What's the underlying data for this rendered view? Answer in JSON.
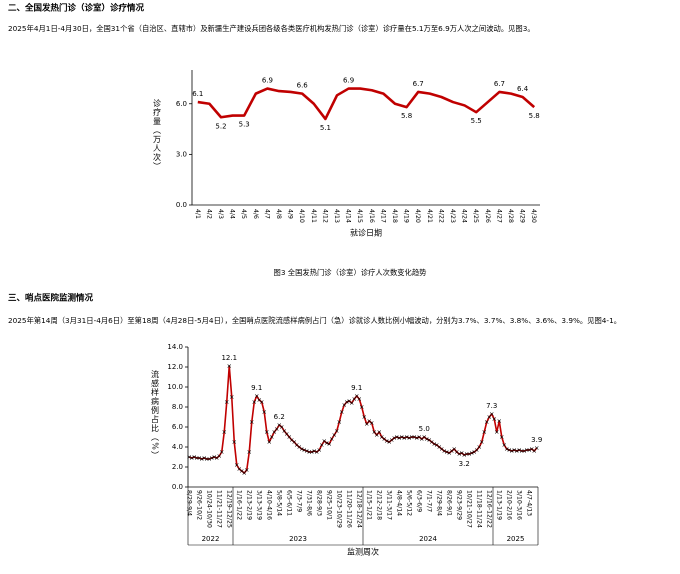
{
  "section1": {
    "heading": "二、全国发热门诊（诊室）诊疗情况",
    "paragraph": "2025年4月1日-4月30日，全国31个省（自治区、直辖市）及新疆生产建设兵团各级各类医疗机构发热门诊（诊室）诊疗量在5.1万至6.9万人次之间波动。见图3。"
  },
  "figure_caption": "图3 全国发热门诊（诊室）诊疗人次数变化趋势",
  "section2": {
    "heading": "三、哨点医院监测情况",
    "paragraph": "2025年第14周（3月31日-4月6日）至第18周（4月28日-5月4日），全国哨点医院流感样病例占门（急）诊就诊人数比例小幅波动，分别为3.7%、3.7%、3.8%、3.6%、3.9%。见图4-1。"
  },
  "chart_data": [
    {
      "type": "line",
      "y_label": "诊疗量（万人次）",
      "x_label": "就诊日期",
      "color": "#c00000",
      "categories": [
        "4/1",
        "4/2",
        "4/3",
        "4/4",
        "4/5",
        "4/6",
        "4/7",
        "4/8",
        "4/9",
        "4/10",
        "4/11",
        "4/12",
        "4/13",
        "4/14",
        "4/15",
        "4/16",
        "4/17",
        "4/18",
        "4/19",
        "4/20",
        "4/21",
        "4/22",
        "4/23",
        "4/24",
        "4/25",
        "4/26",
        "4/27",
        "4/28",
        "4/29",
        "4/30"
      ],
      "values": [
        6.1,
        6.0,
        5.2,
        5.3,
        5.3,
        6.6,
        6.9,
        6.75,
        6.7,
        6.6,
        6.0,
        5.1,
        6.5,
        6.9,
        6.9,
        6.8,
        6.6,
        6.0,
        5.8,
        6.7,
        6.6,
        6.4,
        6.1,
        5.9,
        5.5,
        6.1,
        6.7,
        6.6,
        6.4,
        5.8
      ],
      "value_labels": [
        "6.1",
        null,
        "5.2",
        null,
        "5.3",
        null,
        "6.9",
        null,
        null,
        "6.6",
        null,
        "5.1",
        null,
        "6.9",
        null,
        null,
        null,
        null,
        "5.8",
        "6.7",
        null,
        null,
        null,
        null,
        "5.5",
        null,
        "6.7",
        null,
        "6.4",
        "5.8"
      ],
      "ylim": [
        0,
        8
      ],
      "yticks": [
        {
          "value": 0,
          "label": "0.0"
        },
        {
          "value": 3,
          "label": "3.0"
        },
        {
          "value": 6,
          "label": "6.0"
        }
      ]
    },
    {
      "type": "line",
      "y_label": "流感样病例占比（%）",
      "x_label": "监测周次",
      "color": "#c00000",
      "marker": "x",
      "marker_color": "#000000",
      "categories": [
        "8/29-9/4",
        null,
        null,
        null,
        "9/26-10/2",
        null,
        null,
        null,
        "10/24-10/30",
        null,
        null,
        null,
        "11/21-11/27",
        null,
        null,
        null,
        "12/19-12/25",
        null,
        null,
        null,
        "1/16-1/22",
        null,
        null,
        null,
        "2/13-2/19",
        null,
        null,
        null,
        "3/13-3/19",
        null,
        null,
        null,
        "4/10-4/16",
        null,
        null,
        null,
        "5/8-5/14",
        null,
        null,
        null,
        "6/5-6/11",
        null,
        null,
        null,
        "7/3-7/9",
        null,
        null,
        null,
        "7/31-8/6",
        null,
        null,
        null,
        "8/28-9/3",
        null,
        null,
        null,
        "9/25-10/1",
        null,
        null,
        null,
        "10/23-10/29",
        null,
        null,
        null,
        "11/20-11/26",
        null,
        null,
        null,
        "12/18-12/24",
        null,
        null,
        null,
        "1/15-1/21",
        null,
        null,
        null,
        "2/12-2/18",
        null,
        null,
        null,
        "3/11-3/17",
        null,
        null,
        null,
        "4/8-4/14",
        null,
        null,
        null,
        "5/6-5/12",
        null,
        null,
        null,
        "6/3-6/9",
        null,
        null,
        null,
        "7/1-7/7",
        null,
        null,
        null,
        "7/29-8/4",
        null,
        null,
        null,
        "8/26-9/1",
        null,
        null,
        null,
        "9/23-9/29",
        null,
        null,
        null,
        "10/21-10/27",
        null,
        null,
        null,
        "11/18-11/24",
        null,
        null,
        null,
        "12/16-12/22",
        null,
        null,
        null,
        "1/13-1/19",
        null,
        null,
        null,
        "2/10-2/16",
        null,
        null,
        null,
        "3/10-3/16",
        null,
        null,
        null,
        "4/7-4/13",
        null,
        null,
        null
      ],
      "values": [
        3.0,
        2.9,
        3.0,
        2.9,
        2.9,
        2.8,
        2.9,
        2.8,
        2.8,
        2.9,
        3.0,
        2.9,
        3.1,
        3.5,
        5.5,
        8.5,
        12.1,
        9.0,
        4.5,
        2.2,
        1.8,
        1.6,
        1.4,
        1.7,
        3.5,
        6.5,
        8.5,
        9.1,
        8.7,
        8.5,
        7.5,
        5.5,
        4.5,
        5.0,
        5.5,
        5.8,
        6.2,
        6.0,
        5.6,
        5.3,
        5.0,
        4.7,
        4.5,
        4.2,
        4.0,
        3.8,
        3.7,
        3.6,
        3.5,
        3.5,
        3.6,
        3.5,
        3.7,
        4.2,
        4.6,
        4.4,
        4.3,
        4.8,
        5.2,
        5.6,
        6.5,
        7.5,
        8.2,
        8.5,
        8.6,
        8.4,
        8.8,
        9.1,
        8.8,
        8.0,
        7.0,
        6.3,
        6.6,
        6.4,
        5.5,
        5.2,
        5.5,
        5.0,
        4.8,
        4.6,
        4.5,
        4.7,
        4.9,
        5.0,
        4.9,
        5.0,
        4.9,
        5.0,
        4.9,
        5.0,
        5.0,
        4.9,
        5.0,
        4.8,
        5.0,
        4.8,
        4.7,
        4.5,
        4.3,
        4.2,
        4.0,
        3.8,
        3.6,
        3.5,
        3.4,
        3.6,
        3.8,
        3.5,
        3.3,
        3.4,
        3.2,
        3.3,
        3.3,
        3.4,
        3.5,
        3.7,
        4.0,
        4.5,
        5.5,
        6.5,
        7.0,
        7.3,
        6.8,
        5.5,
        6.6,
        5.0,
        4.2,
        3.8,
        3.7,
        3.6,
        3.7,
        3.6,
        3.7,
        3.6,
        3.6,
        3.7,
        3.7,
        3.8,
        3.6,
        3.9
      ],
      "value_labels": [
        null,
        null,
        null,
        null,
        null,
        null,
        null,
        null,
        null,
        null,
        null,
        null,
        null,
        null,
        null,
        null,
        "12.1",
        null,
        null,
        null,
        null,
        null,
        null,
        null,
        null,
        null,
        null,
        "9.1",
        null,
        null,
        null,
        null,
        null,
        null,
        null,
        null,
        "6.2",
        null,
        null,
        null,
        null,
        null,
        null,
        null,
        null,
        null,
        null,
        null,
        null,
        null,
        null,
        null,
        null,
        null,
        null,
        null,
        null,
        null,
        null,
        null,
        null,
        null,
        null,
        null,
        null,
        null,
        null,
        "9.1",
        null,
        null,
        null,
        null,
        null,
        null,
        null,
        null,
        null,
        null,
        null,
        null,
        null,
        null,
        null,
        null,
        null,
        null,
        null,
        null,
        null,
        null,
        null,
        null,
        null,
        null,
        "5.0",
        null,
        null,
        null,
        null,
        null,
        null,
        null,
        null,
        null,
        null,
        null,
        null,
        null,
        null,
        null,
        "3.2",
        null,
        null,
        null,
        null,
        null,
        null,
        null,
        null,
        null,
        null,
        "7.3",
        null,
        null,
        null,
        null,
        null,
        null,
        null,
        null,
        null,
        null,
        null,
        null,
        null,
        null,
        null,
        null,
        null,
        "3.9"
      ],
      "year_groups": [
        {
          "label": "2022",
          "count": 18
        },
        {
          "label": "2023",
          "count": 52
        },
        {
          "label": "2024",
          "count": 52
        },
        {
          "label": "2025",
          "count": 18
        }
      ],
      "ylim": [
        0,
        14
      ],
      "yticks": [
        {
          "value": 0,
          "label": "0.0"
        },
        {
          "value": 2,
          "label": "2.0"
        },
        {
          "value": 4,
          "label": "4.0"
        },
        {
          "value": 6,
          "label": "6.0"
        },
        {
          "value": 8,
          "label": "8.0"
        },
        {
          "value": 10,
          "label": "10.0"
        },
        {
          "value": 12,
          "label": "12.0"
        },
        {
          "value": 14,
          "label": "14.0"
        }
      ]
    }
  ]
}
